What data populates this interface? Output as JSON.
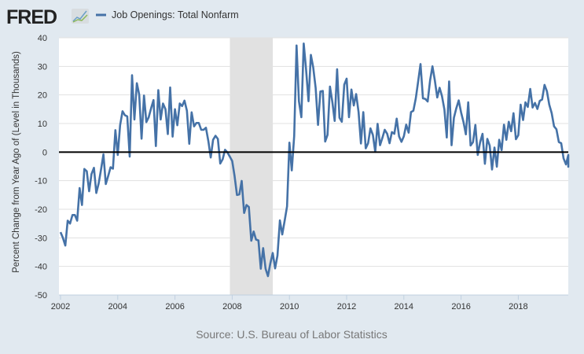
{
  "header": {
    "logo_text": "FRED",
    "legend_label": "Job Openings: Total Nonfarm"
  },
  "source": "Source: U.S. Bureau of Labor Statistics",
  "colors": {
    "background": "#e1e9f0",
    "line": "#4572a7",
    "recession": "#e1e1e1",
    "zero_line": "#000000"
  },
  "chart_data": {
    "type": "line",
    "title": "",
    "xlabel": "",
    "ylabel": "Percent Change from Year Ago of (Level in Thousands)",
    "ylim": [
      -50,
      40
    ],
    "xlim": [
      2002,
      2019.75
    ],
    "yticks": [
      40,
      30,
      20,
      10,
      0,
      -10,
      -20,
      -30,
      -40,
      -50
    ],
    "xticks": [
      2002,
      2004,
      2006,
      2008,
      2010,
      2012,
      2014,
      2016,
      2018
    ],
    "grid": true,
    "legend": "top-left",
    "recession": {
      "start": 2007.92,
      "end": 2009.42
    },
    "series": [
      {
        "name": "Job Openings: Total Nonfarm",
        "start": "2002-01",
        "frequency": "monthly",
        "values": [
          -28,
          -30,
          -32.7,
          -24,
          -25,
          -22,
          -22,
          -24,
          -12.6,
          -18.5,
          -5.9,
          -6.7,
          -13.7,
          -7.7,
          -5.5,
          -14.3,
          -11,
          -6,
          -0.8,
          -11.2,
          -8.3,
          -5.3,
          -5.8,
          7.7,
          -1,
          9.4,
          14.3,
          12.9,
          12.5,
          -1.6,
          26.9,
          11.4,
          24.1,
          20.1,
          4.7,
          19.8,
          10.5,
          12.2,
          15.4,
          18.2,
          2.1,
          21.7,
          11.4,
          17,
          15,
          6.3,
          22.6,
          5.4,
          15,
          9.4,
          17,
          16.1,
          18,
          14.5,
          2.9,
          13.9,
          9,
          10.2,
          10.2,
          7.8,
          7.8,
          8.5,
          3.8,
          -1.9,
          4.3,
          5.7,
          4.6,
          -4,
          -2.5,
          0.8,
          -0.1,
          -1.6,
          -3.1,
          -8.3,
          -15,
          -14.8,
          -10.1,
          -21.3,
          -18.5,
          -19.2,
          -31,
          -27.8,
          -30.6,
          -30.9,
          -40.8,
          -33.6,
          -40.8,
          -43.4,
          -39,
          -35.3,
          -40.7,
          -36.2,
          -23.9,
          -28.8,
          -24.1,
          -19,
          3.3,
          -6.4,
          5.7,
          37.3,
          17.8,
          12.2,
          38,
          28.9,
          17.8,
          34,
          29.6,
          22.4,
          9.5,
          21.2,
          21.4,
          3.7,
          6,
          22.9,
          17.6,
          10.9,
          29,
          12,
          10.6,
          23.6,
          25.7,
          12.2,
          21.9,
          16.3,
          20.3,
          14,
          3,
          14,
          1.3,
          3.1,
          8.3,
          6,
          0.1,
          9.9,
          2.4,
          5,
          7.8,
          6.4,
          3.1,
          7,
          6.4,
          11.7,
          5.5,
          3.6,
          5.5,
          9.6,
          6.8,
          14,
          14.5,
          18.8,
          24.7,
          30.8,
          18.8,
          18.6,
          17.7,
          25.1,
          30,
          25.1,
          19.1,
          22.5,
          19.6,
          14.9,
          5.1,
          24.7,
          2.4,
          12,
          15.3,
          18.1,
          13.9,
          10.6,
          6.2,
          17.4,
          2.3,
          3.5,
          9.5,
          -1,
          3.5,
          6.4,
          -4.1,
          4.6,
          2.3,
          -6.1,
          1.6,
          -5.1,
          4.3,
          0.7,
          9.6,
          4.3,
          10.6,
          7.3,
          13.6,
          4.5,
          5.9,
          16.6,
          11.2,
          17.4,
          15.8,
          22.1,
          15.6,
          17.2,
          15.1,
          17.9,
          18.4,
          23.5,
          21.3,
          16.6,
          13.6,
          9,
          8,
          3.5,
          3.1,
          -2.2,
          -4.3,
          -1,
          -5.1,
          -4.6
        ]
      }
    ]
  }
}
